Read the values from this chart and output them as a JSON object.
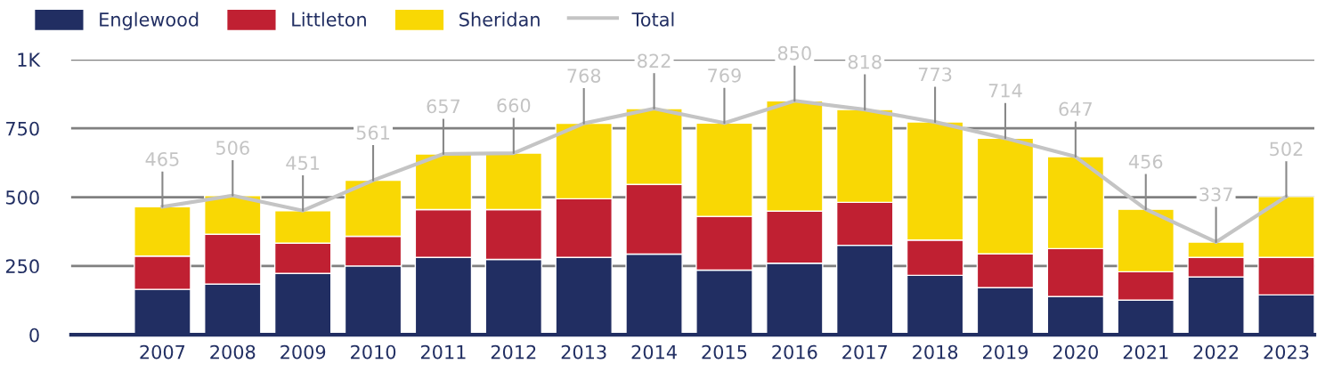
{
  "chart_data": {
    "type": "bar",
    "stacked": true,
    "categories": [
      "2007",
      "2008",
      "2009",
      "2010",
      "2011",
      "2012",
      "2013",
      "2014",
      "2015",
      "2016",
      "2017",
      "2018",
      "2019",
      "2020",
      "2021",
      "2022",
      "2023"
    ],
    "series": [
      {
        "name": "Englewood",
        "color": "#212e62",
        "values": [
          165,
          184,
          223,
          250,
          281,
          274,
          281,
          293,
          235,
          260,
          325,
          216,
          171,
          139,
          126,
          210,
          145
        ]
      },
      {
        "name": "Littleton",
        "color": "#c02032",
        "values": [
          121,
          181,
          110,
          108,
          174,
          181,
          213,
          253,
          195,
          189,
          156,
          128,
          123,
          174,
          103,
          71,
          136
        ]
      },
      {
        "name": "Sheridan",
        "color": "#f9d804",
        "values": [
          179,
          141,
          118,
          203,
          202,
          205,
          274,
          276,
          339,
          401,
          337,
          429,
          420,
          334,
          227,
          56,
          221
        ]
      },
      {
        "name": "Total",
        "type": "line",
        "color": "#c4c4c4",
        "data_labels": true,
        "values": [
          465,
          506,
          451,
          561,
          657,
          660,
          768,
          822,
          769,
          850,
          818,
          773,
          714,
          647,
          456,
          337,
          502
        ]
      }
    ],
    "ylim": [
      0,
      1000
    ],
    "yticks": [
      0,
      250,
      500,
      750,
      {
        "value": 1000,
        "label": "1K"
      }
    ],
    "grid": "y",
    "legend": "top left"
  }
}
